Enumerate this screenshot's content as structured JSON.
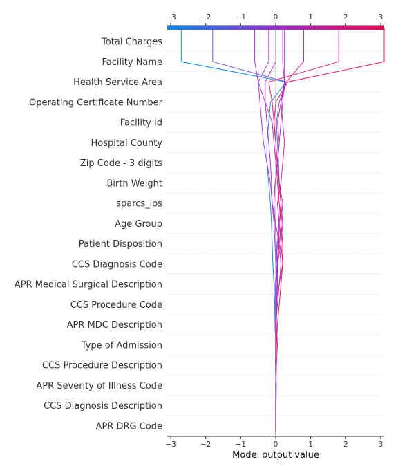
{
  "chart_data": {
    "type": "line",
    "title": "",
    "xlabel": "Model output value",
    "ylabel": "",
    "xlim": [
      -3.1,
      3.1
    ],
    "x_ticks": [
      -3,
      -2,
      -1,
      0,
      1,
      2,
      3
    ],
    "x_tick_labels": [
      "−3",
      "−2",
      "−1",
      "0",
      "1",
      "2",
      "3"
    ],
    "grid": "horizontal dotted",
    "colormap": {
      "low": "#008bfb",
      "mid": "#9c2ad6",
      "high": "#ff0052"
    },
    "features": [
      "Total Charges",
      "Facility Name",
      "Health Service Area",
      "Operating Certificate Number",
      "Facility Id",
      "Hospital County",
      "Zip Code - 3 digits",
      "Birth Weight",
      "sparcs_los",
      "Age Group",
      "Patient Disposition",
      "CCS Diagnosis Code",
      "APR Medical Surgical Description",
      "CCS Procedure Code",
      "APR MDC Description",
      "Type of Admission",
      "CCS Procedure Description",
      "APR Severity of Illness Code",
      "CCS Diagnosis Description",
      "APR DRG Code"
    ],
    "base_value": 0.0,
    "series": [
      {
        "color": "#0a86f8",
        "values": [
          0,
          0.01,
          0,
          -0.01,
          0.02,
          0,
          -0.02,
          -0.03,
          -0.05,
          -0.08,
          -0.1,
          -0.12,
          -0.15,
          -0.2,
          -0.25,
          -0.25,
          -0.2,
          -0.15,
          0.3,
          -2.7
        ]
      },
      {
        "color": "#6b52e8",
        "values": [
          0,
          0,
          0.01,
          0.02,
          -0.01,
          0,
          0.01,
          -0.02,
          0,
          0.02,
          0.05,
          0.08,
          0.06,
          0.1,
          0.08,
          0.05,
          0.02,
          0.1,
          0.3,
          -1.8
        ]
      },
      {
        "color": "#9a30d8",
        "values": [
          0,
          0.01,
          0,
          0,
          0.02,
          0,
          -0.02,
          0,
          0.02,
          0.05,
          0.1,
          0.15,
          0.2,
          0.1,
          0,
          -0.05,
          -0.1,
          -0.3,
          -0.5,
          -0.6
        ]
      },
      {
        "color": "#a82bcf",
        "values": [
          0,
          0,
          0,
          0.01,
          0,
          0.02,
          0,
          0.05,
          0.1,
          0.15,
          0.1,
          0,
          -0.1,
          -0.15,
          -0.25,
          -0.35,
          -0.4,
          -0.45,
          -0.5,
          -0.2
        ]
      },
      {
        "color": "#c224ab",
        "values": [
          0,
          0,
          0.01,
          0,
          -0.01,
          0,
          0.02,
          0,
          -0.02,
          0.05,
          0.15,
          0.2,
          0.15,
          0.1,
          0.05,
          0.1,
          0.05,
          0.15,
          0.25,
          0.25
        ]
      },
      {
        "color": "#d81d90",
        "values": [
          0,
          0.01,
          0,
          0.01,
          0.02,
          0.05,
          0.02,
          0,
          0.1,
          0.2,
          0.15,
          0.1,
          0.05,
          0.15,
          0.2,
          0.25,
          0.2,
          0.15,
          0.3,
          0.8
        ]
      },
      {
        "color": "#e51478",
        "values": [
          0,
          0,
          0,
          0,
          0.01,
          0,
          0.01,
          0.02,
          0.05,
          0.05,
          0.08,
          0.1,
          0.15,
          0.1,
          0.05,
          0,
          -0.05,
          -0.1,
          -0.2,
          1.8
        ]
      },
      {
        "color": "#f0095e",
        "values": [
          0,
          0.01,
          0.01,
          0,
          0,
          0.02,
          0.05,
          0.1,
          0.15,
          0.2,
          0.2,
          0.15,
          0.1,
          0.05,
          0.02,
          0,
          -0.05,
          0,
          0.35,
          3.1
        ]
      },
      {
        "color": "#b528bf",
        "values": [
          0,
          -0.01,
          0,
          0.01,
          0,
          -0.01,
          0,
          0.01,
          0.02,
          0,
          -0.02,
          -0.05,
          -0.1,
          -0.12,
          -0.15,
          -0.2,
          -0.25,
          -0.3,
          -0.3,
          0
        ]
      },
      {
        "color": "#8838dd",
        "values": [
          0,
          0,
          -0.01,
          0,
          0.01,
          0,
          0.02,
          0.03,
          0.05,
          0.05,
          0.02,
          -0.02,
          -0.05,
          -0.02,
          0.05,
          0.1,
          0.15,
          0.2,
          0.25,
          0.2
        ]
      }
    ]
  }
}
